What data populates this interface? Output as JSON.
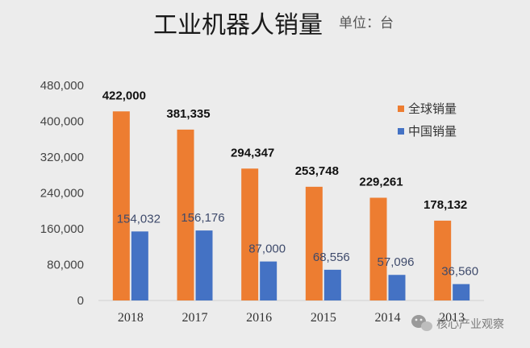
{
  "chart_data": {
    "type": "bar",
    "title": "工业机器人销量",
    "subtitle": "单位：台",
    "categories": [
      "2018",
      "2017",
      "2016",
      "2015",
      "2014",
      "2013"
    ],
    "series": [
      {
        "name": "全球销量",
        "color": "#ed7d31",
        "values": [
          422000,
          381335,
          294347,
          253748,
          229261,
          178132
        ],
        "labels": [
          "422,000",
          "381,335",
          "294,347",
          "253,748",
          "229,261",
          "178,132"
        ]
      },
      {
        "name": "中国销量",
        "color": "#4472c4",
        "values": [
          154032,
          156176,
          87000,
          68556,
          57096,
          36560
        ],
        "labels": [
          "154,032",
          "156,176",
          "87,000",
          "68,556",
          "57,096",
          "36,560"
        ]
      }
    ],
    "yticks": [
      "0",
      "80,000",
      "160,000",
      "240,000",
      "320,000",
      "400,000",
      "480,000"
    ],
    "ylim": [
      0,
      480000
    ],
    "grid": false,
    "legend": "right"
  },
  "watermark": {
    "text": "核心产业观察",
    "icon": "wechat-icon"
  }
}
